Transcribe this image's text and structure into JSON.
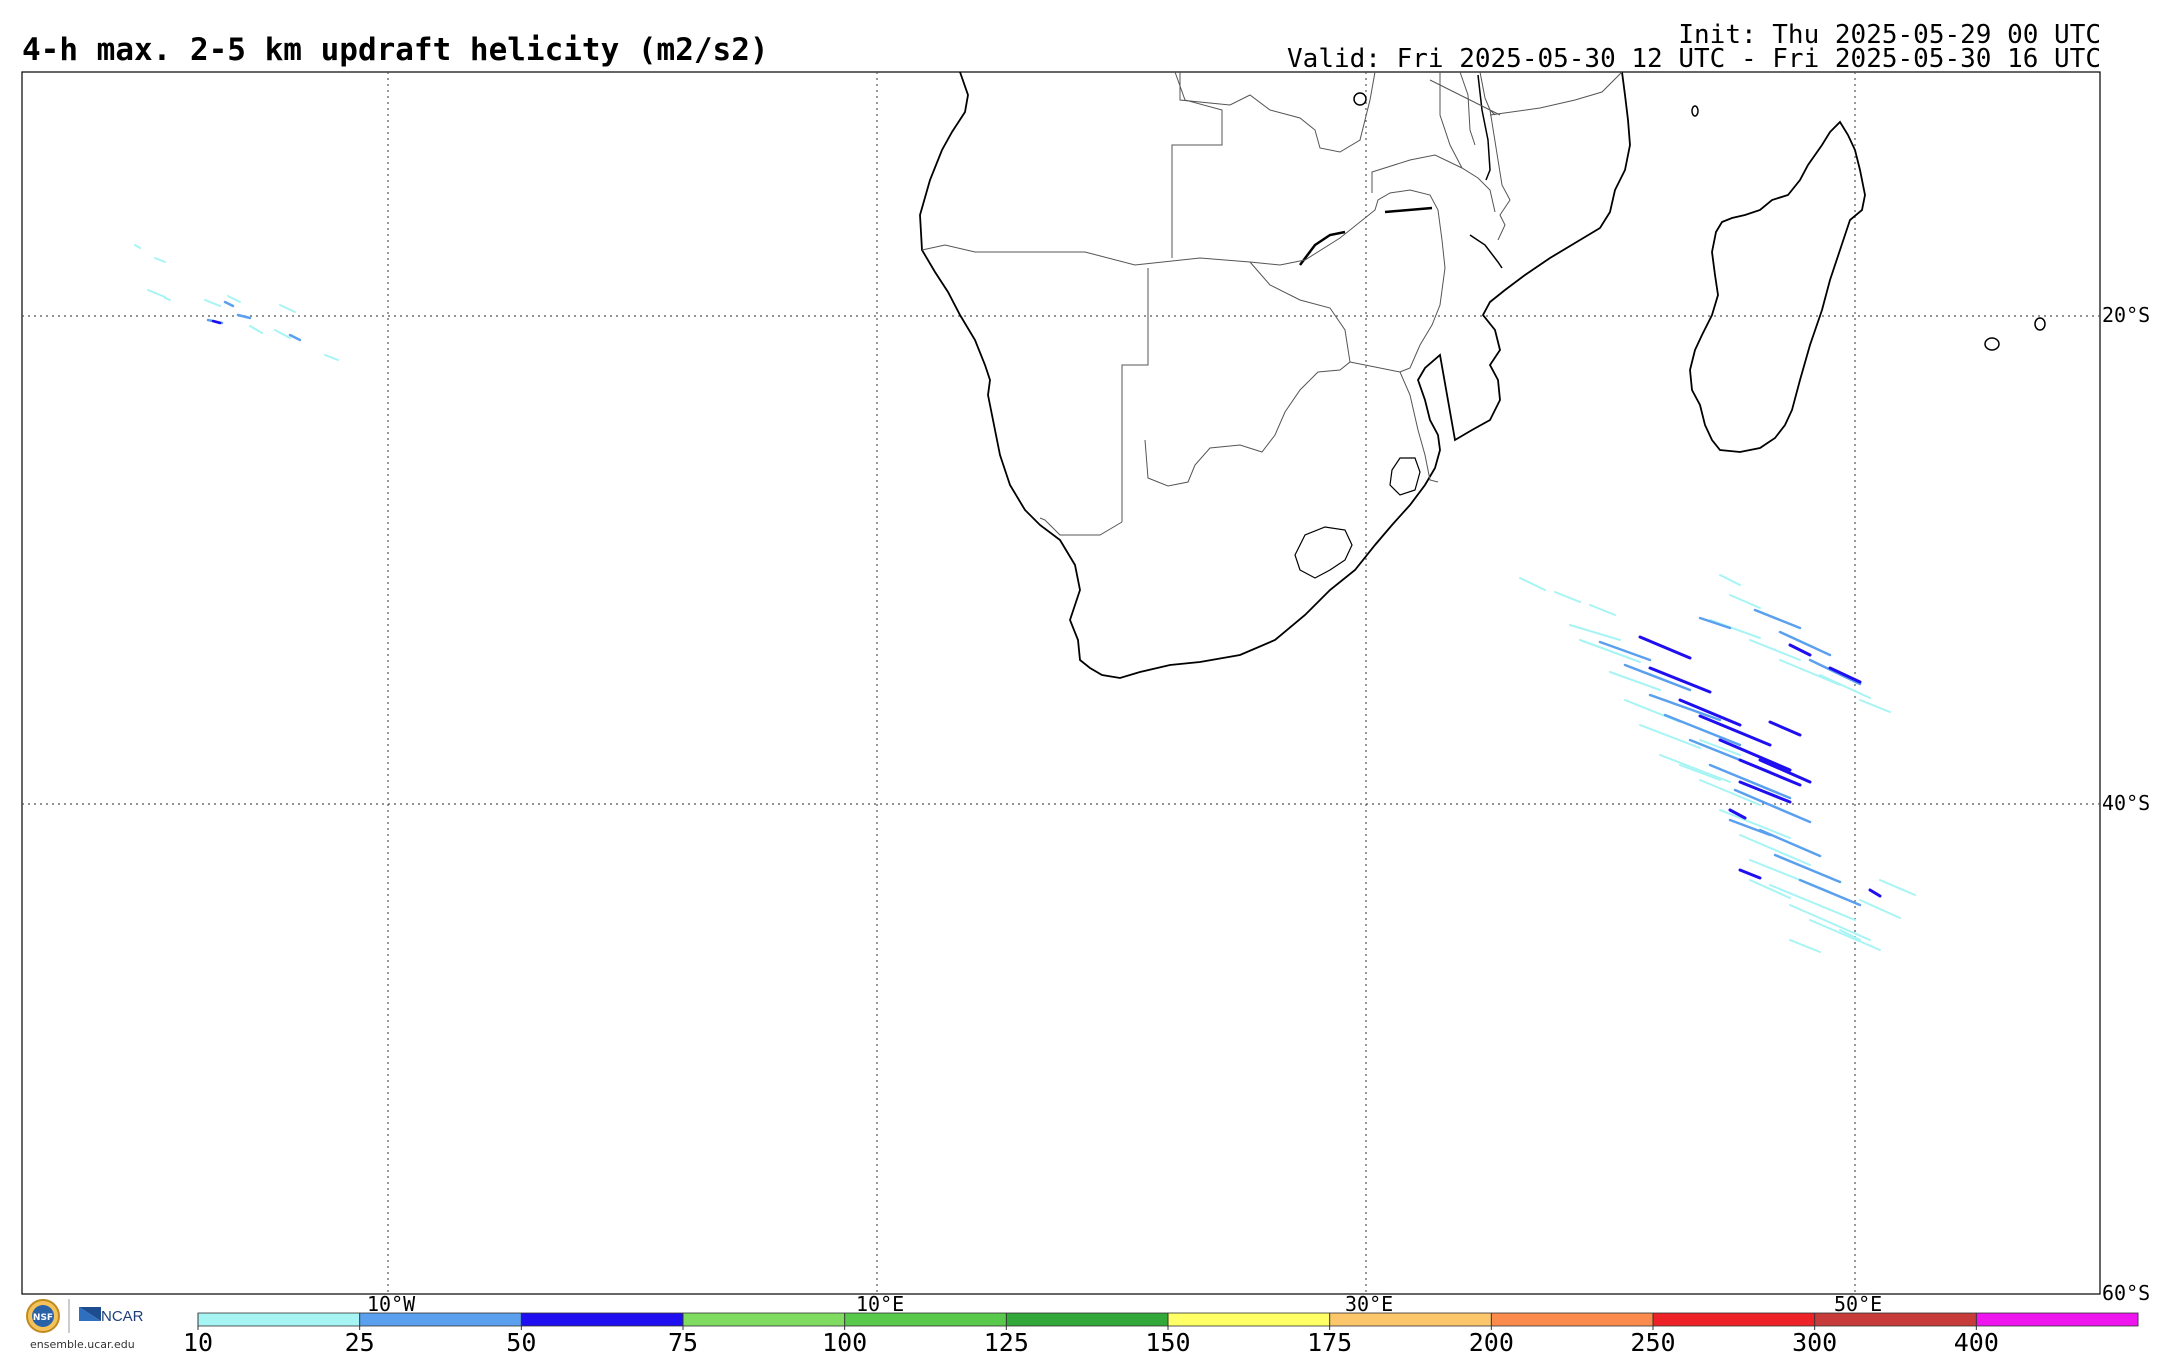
{
  "header": {
    "title": "4-h max. 2-5 km updraft helicity (m2/s2)",
    "init": "Init: Thu 2025-05-29 00 UTC",
    "valid": "Valid: Fri 2025-05-30 12 UTC - Fri 2025-05-30 16 UTC"
  },
  "map": {
    "longitude_labels": [
      "10°W",
      "10°E",
      "30°E",
      "50°E"
    ],
    "latitude_labels": [
      "20°S",
      "40°S",
      "60°S"
    ]
  },
  "colorbar": {
    "ticks": [
      "10",
      "25",
      "50",
      "75",
      "100",
      "125",
      "150",
      "175",
      "200",
      "250",
      "300",
      "400"
    ],
    "colors": [
      "#a6f4f4",
      "#5aa0ee",
      "#1f0ef0",
      "#7fdc60",
      "#58c94a",
      "#33a83a",
      "#ffff66",
      "#fcc66b",
      "#fb8a4d",
      "#ee2226",
      "#c73c3b",
      "#ee15ee"
    ]
  },
  "logo": {
    "org_text": "NCAR",
    "nsf_text": "NSF",
    "url": "ensemble.ucar.edu"
  }
}
